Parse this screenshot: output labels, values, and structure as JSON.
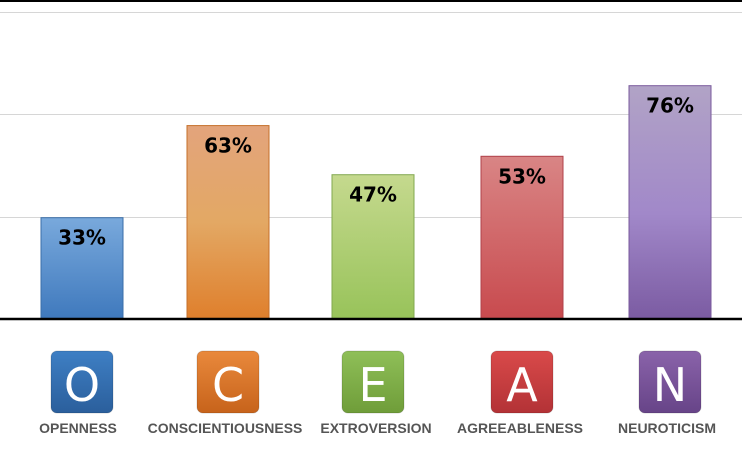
{
  "chart_data": {
    "type": "bar",
    "categories": [
      "OPENNESS",
      "CONSCIENTIOUSNESS",
      "EXTROVERSION",
      "AGREEABLENESS",
      "NEUROTICISM"
    ],
    "values": [
      33,
      63,
      47,
      53,
      76
    ],
    "value_labels": [
      "33%",
      "63%",
      "47%",
      "53%",
      "76%"
    ],
    "ylim": [
      0,
      100
    ],
    "grid": true,
    "title": "",
    "xlabel": "",
    "ylabel": ""
  },
  "letters": [
    "O",
    "C",
    "E",
    "A",
    "N"
  ],
  "colors": {
    "openness": "#4a82c3",
    "conscientiousness": "#e6883a",
    "extroversion": "#9bc262",
    "agreeableness": "#d45a5a",
    "neuroticism": "#9a78b8"
  },
  "icons": [
    "letter-o-icon",
    "letter-c-icon",
    "letter-e-icon",
    "letter-a-icon",
    "letter-n-icon"
  ]
}
